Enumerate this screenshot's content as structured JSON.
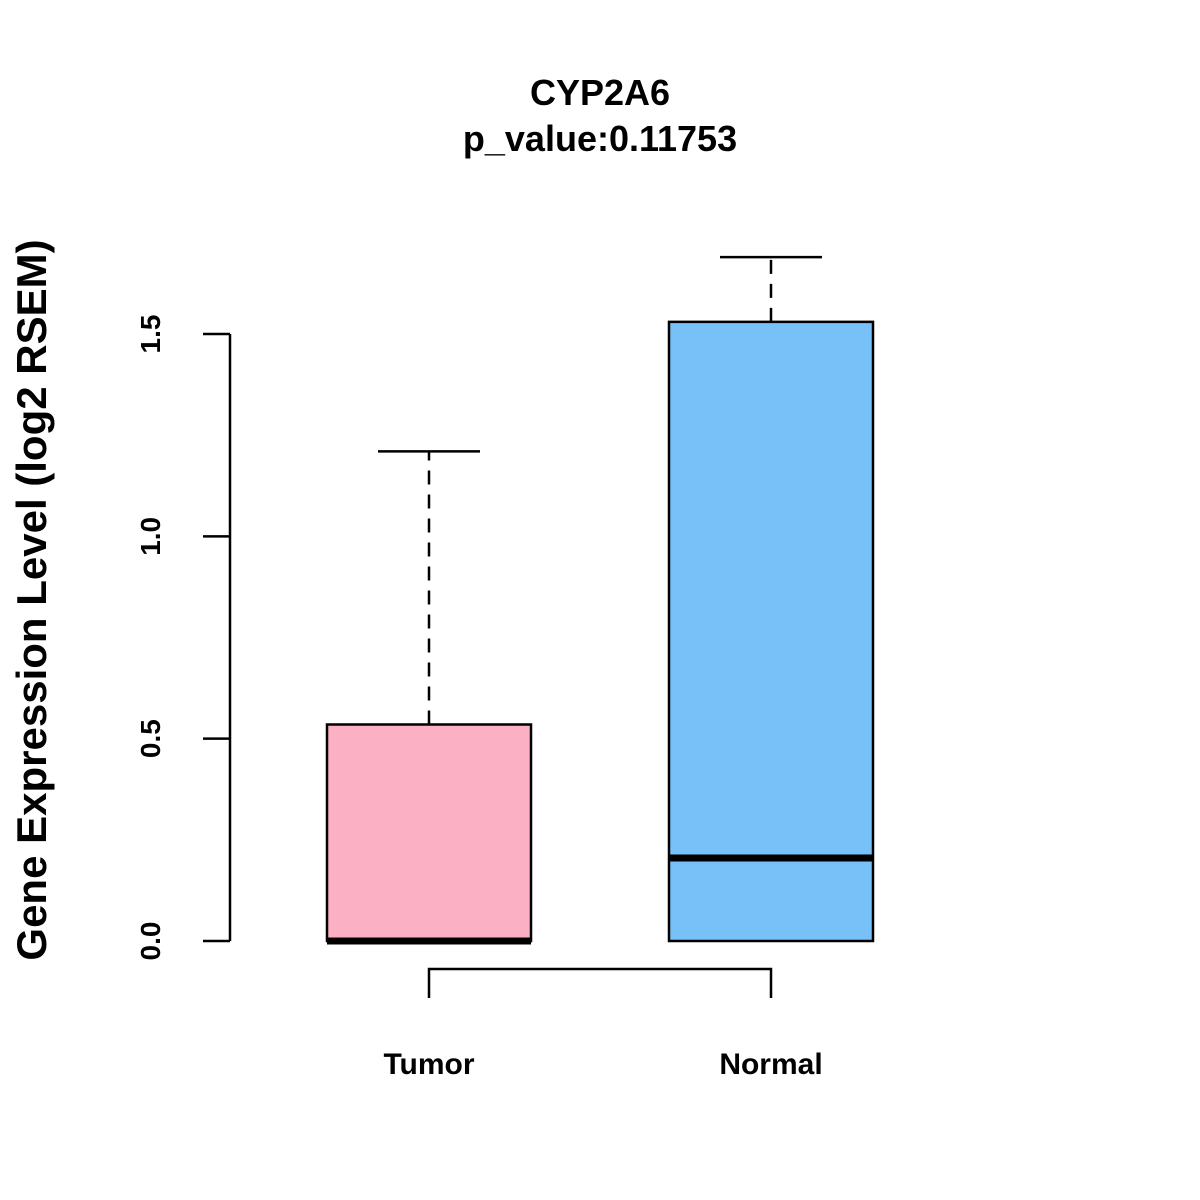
{
  "chart_data": {
    "type": "box",
    "title": "CYP2A6",
    "subtitle": "p_value:0.11753",
    "xlabel": "",
    "ylabel": "Gene Expression Level (log2 RSEM)",
    "ylim": [
      0,
      1.5
    ],
    "yticks": [
      "0.0",
      "0.5",
      "1.0",
      "1.5"
    ],
    "grid": false,
    "categories": [
      "Tumor",
      "Normal"
    ],
    "boxes": [
      {
        "name": "Tumor",
        "min": 0.0,
        "q1": 0.0,
        "median": 0.0,
        "q3": 0.535,
        "max": 1.21,
        "color": "#FBB1C3"
      },
      {
        "name": "Normal",
        "min": 0.0,
        "q1": 0.0,
        "median": 0.205,
        "q3": 1.53,
        "max": 1.69,
        "color": "#77C1F8"
      }
    ],
    "comparison_bracket": [
      "Tumor",
      "Normal"
    ]
  }
}
